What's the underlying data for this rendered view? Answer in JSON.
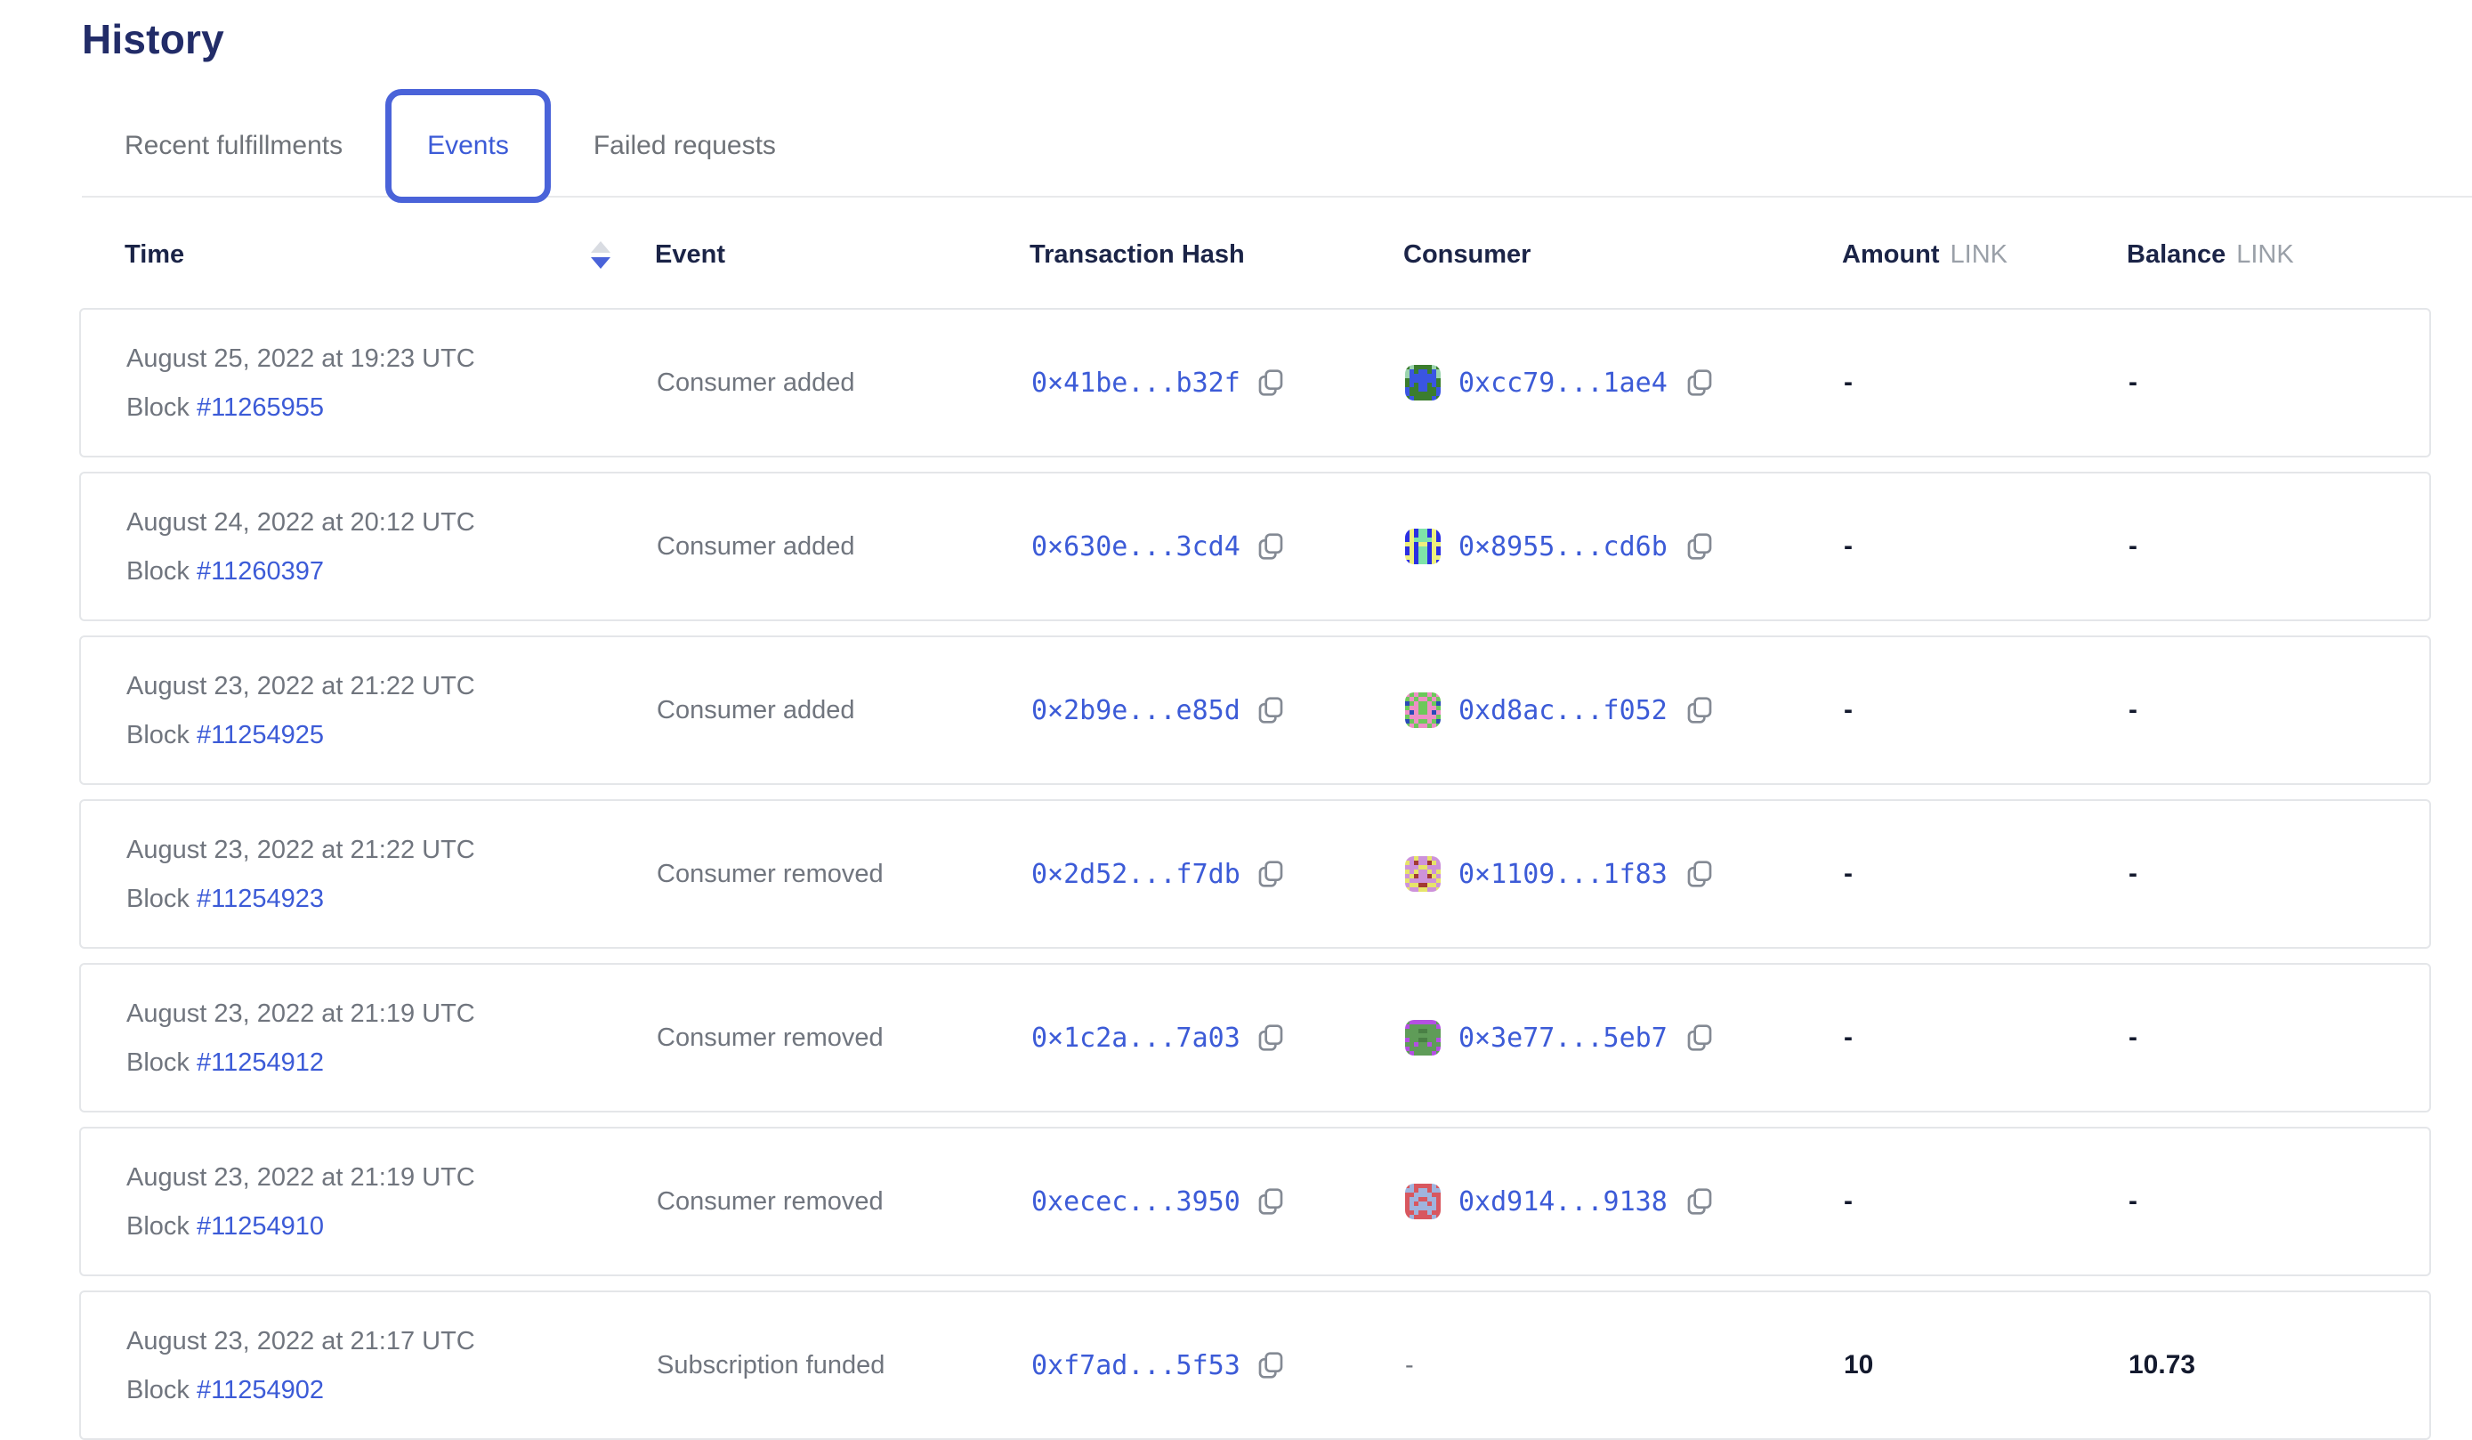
{
  "page": {
    "title": "History"
  },
  "tabs": [
    {
      "label": "Recent fulfillments",
      "active": false
    },
    {
      "label": "Events",
      "active": true
    },
    {
      "label": "Failed requests",
      "active": false
    }
  ],
  "colors": {
    "accent_blue": "#3c5bd7",
    "active_tab_border": "#4a63d9",
    "heading_ink": "#1b2447",
    "muted_gray": "#70757e",
    "unit_gray": "#9aa0a8",
    "card_border": "#e4e6e9"
  },
  "icons": {
    "sort": "sort-arrows",
    "copy": "copy-document"
  },
  "table": {
    "columns": {
      "time": "Time",
      "event": "Event",
      "tx": "Transaction Hash",
      "consumer": "Consumer",
      "amount": "Amount",
      "amount_unit": "LINK",
      "balance": "Balance",
      "balance_unit": "LINK"
    },
    "block_prefix": "Block",
    "rows": [
      {
        "time": "August 25, 2022 at 19:23 UTC",
        "block": "#11265955",
        "event": "Consumer added",
        "tx_hash": "0×41be...b32f",
        "consumer": "0xcc79...1ae4",
        "amount": "-",
        "balance": "-",
        "avatar": {
          "colors": {
            "g": "#3b7d2e",
            "b": "#3a55e2",
            "t": "#9bd4ae"
          },
          "grid": [
            "gtggggtg",
            "tbgbbgbt",
            "tbbbbbbt",
            "gbbbbbbg",
            "gbgbbgbg",
            "bggbbggb",
            "bggggggb",
            "gbggggbg"
          ]
        }
      },
      {
        "time": "August 24, 2022 at 20:12 UTC",
        "block": "#11260397",
        "event": "Consumer added",
        "tx_hash": "0×630e...3cd4",
        "consumer": "0×8955...cd6b",
        "amount": "-",
        "balance": "-",
        "avatar": {
          "colors": {
            "a": "#2b2fe3",
            "y": "#eef07c",
            "n": "#7fe3a8"
          },
          "grid": [
            "ayannaya",
            "ayannaya",
            "aynnnnya",
            "yyayyayy",
            "ayannaya",
            "ayannaya",
            "yyannayy",
            "ayannaya"
          ]
        }
      },
      {
        "time": "August 23, 2022 at 21:22 UTC",
        "block": "#11254925",
        "event": "Consumer added",
        "tx_hash": "0×2b9e...e85d",
        "consumer": "0xd8ac...f052",
        "amount": "-",
        "balance": "-",
        "avatar": {
          "colors": {
            "a": "#6cc95a",
            "p": "#ef8fc6",
            "n": "#2b4ab8"
          },
          "grid": [
            "papaapap",
            "apappapa",
            "napaapan",
            "appaappa",
            "pnpaapnp",
            "appppppa",
            "napaapan",
            "apappapa"
          ]
        }
      },
      {
        "time": "August 23, 2022 at 21:22 UTC",
        "block": "#11254923",
        "event": "Consumer removed",
        "tx_hash": "0×2d52...f7db",
        "consumer": "0×1109...1f83",
        "amount": "-",
        "balance": "-",
        "avatar": {
          "colors": {
            "l": "#cd92da",
            "y": "#e6e469",
            "r": "#a23a33"
          },
          "grid": [
            "llyllyll",
            "ylrllryl",
            "lllyylll",
            "ylyllyly",
            "lyrllryl",
            "ylllllly",
            "lyyrryyl",
            "yllyylly"
          ]
        }
      },
      {
        "time": "August 23, 2022 at 21:19 UTC",
        "block": "#11254912",
        "event": "Consumer removed",
        "tx_hash": "0×1c2a...7a03",
        "consumer": "0×3e77...5eb7",
        "amount": "-",
        "balance": "-",
        "avatar": {
          "colors": {
            "e": "#5f9c58",
            "u": "#b44fe3",
            "d": "#4a8045"
          },
          "grid": [
            "euuuuuue",
            "ueeeeeeu",
            "eeeddeee",
            "eeeeeeee",
            "ueeddeeu",
            "eeueeuee",
            "ueeeeeeu",
            "eueeeeue"
          ]
        }
      },
      {
        "time": "August 23, 2022 at 21:19 UTC",
        "block": "#11254910",
        "event": "Consumer removed",
        "tx_hash": "0xecec...3950",
        "consumer": "0xd914...9138",
        "amount": "-",
        "balance": "-",
        "avatar": {
          "colors": {
            "r": "#d8575f",
            "w": "#9fb4de",
            "d": "#c24048"
          },
          "grid": [
            "rwrrrrwr",
            "wwrwwrww",
            "rrwwwwrr",
            "rwwrrwwr",
            "rwrwwrwr",
            "rwwwwwwr",
            "rrwrrwrr",
            "rwrrrrwr"
          ]
        }
      },
      {
        "time": "August 23, 2022 at 21:17 UTC",
        "block": "#11254902",
        "event": "Subscription funded",
        "tx_hash": "0xf7ad...5f53",
        "consumer": "-",
        "amount": "10",
        "balance": "10.73",
        "avatar": null
      }
    ]
  }
}
